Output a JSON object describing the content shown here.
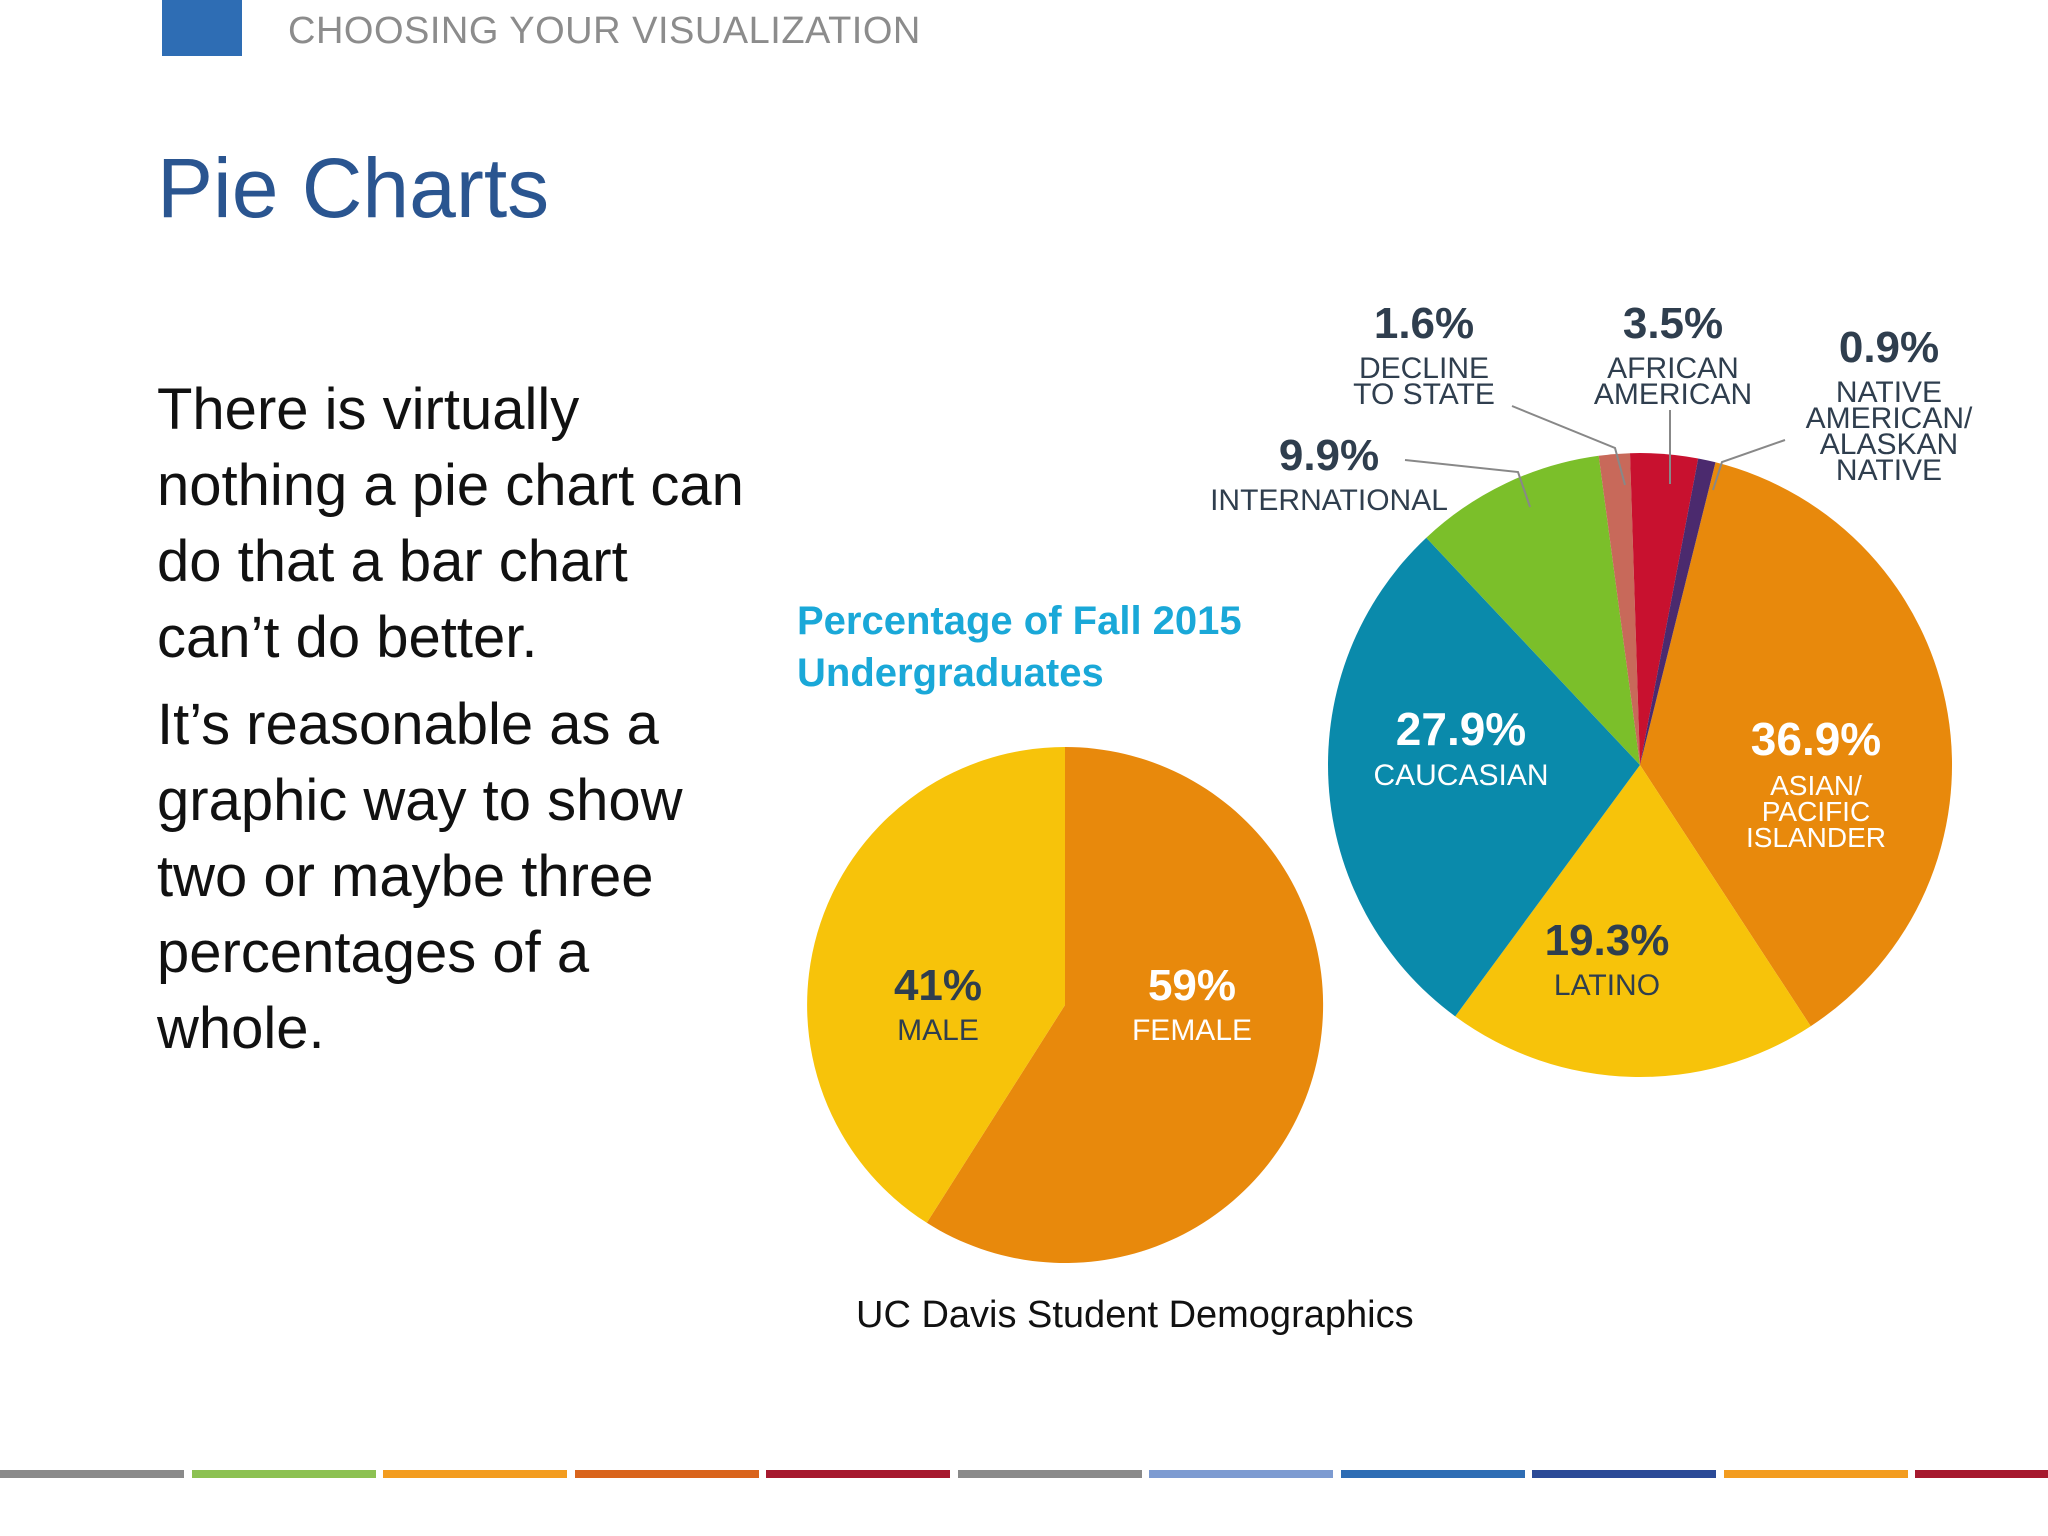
{
  "header": {
    "section_label": "CHOOSING YOUR VISUALIZATION",
    "accent_color": "#2e6db4"
  },
  "slide": {
    "title": "Pie Charts",
    "body": [
      "There is virtually nothing a pie chart can do that a bar chart can’t do better.",
      "It’s reasonable as a graphic way to show two or maybe three percentages of a whole."
    ],
    "caption": "UC Davis Student Demographics"
  },
  "chart_data": [
    {
      "type": "pie",
      "title": "Percentage of Fall 2015 Undergraduates",
      "slices": [
        {
          "value_label": "36.9%",
          "label": "ASIAN/ PACIFIC ISLANDER",
          "value": 36.9,
          "color": "#e8890c"
        },
        {
          "value_label": "19.3%",
          "label": "LATINO",
          "value": 19.3,
          "color": "#f7c30a"
        },
        {
          "value_label": "27.9%",
          "label": "CAUCASIAN",
          "value": 27.9,
          "color": "#0a8aab"
        },
        {
          "value_label": "9.9%",
          "label": "INTERNATIONAL",
          "value": 9.9,
          "color": "#7bbf2a"
        },
        {
          "value_label": "1.6%",
          "label": "DECLINE TO STATE",
          "value": 1.6,
          "color": "#c8695a"
        },
        {
          "value_label": "3.5%",
          "label": "AFRICAN AMERICAN",
          "value": 3.5,
          "color": "#c8112f"
        },
        {
          "value_label": "0.9%",
          "label": "NATIVE AMERICAN/ ALASKAN NATIVE",
          "value": 0.9,
          "color": "#4b2a6e"
        }
      ]
    },
    {
      "type": "pie",
      "slices": [
        {
          "value_label": "59%",
          "label": "FEMALE",
          "value": 59,
          "color": "#e8890c"
        },
        {
          "value_label": "41%",
          "label": "MALE",
          "value": 41,
          "color": "#f7c30a"
        }
      ]
    }
  ],
  "footer_stripe_colors": [
    "#8a8a8a",
    "#8cc152",
    "#f39c1f",
    "#d9641c",
    "#a6192e",
    "#8a8a8a",
    "#7d9bd1",
    "#2e6db4",
    "#2b4a97",
    "#f39c1f",
    "#a6192e"
  ]
}
